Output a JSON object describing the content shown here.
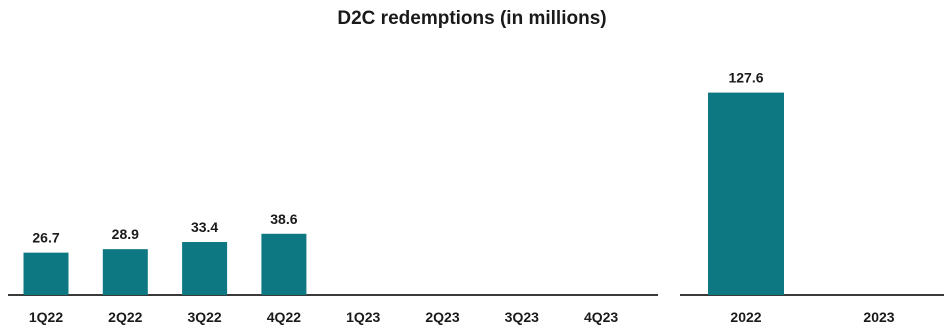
{
  "chart_data": [
    {
      "type": "bar",
      "title": "D2C redemptions (in millions)",
      "categories": [
        "1Q22",
        "2Q22",
        "3Q22",
        "4Q22",
        "1Q23",
        "2Q23",
        "3Q23",
        "4Q23"
      ],
      "values": [
        26.7,
        28.9,
        33.4,
        38.6,
        null,
        null,
        null,
        null
      ],
      "data_labels": [
        "26.7",
        "28.9",
        "33.4",
        "38.6",
        "",
        "",
        "",
        ""
      ],
      "xlabel": "",
      "ylabel": "",
      "ylim": [
        0,
        145
      ],
      "grid": false,
      "color": "#0e7882"
    },
    {
      "type": "bar",
      "categories": [
        "2022",
        "2023"
      ],
      "values": [
        127.6,
        null
      ],
      "data_labels": [
        "127.6",
        ""
      ],
      "xlabel": "",
      "ylabel": "",
      "ylim": [
        0,
        145
      ],
      "grid": false,
      "color": "#0e7882"
    }
  ]
}
